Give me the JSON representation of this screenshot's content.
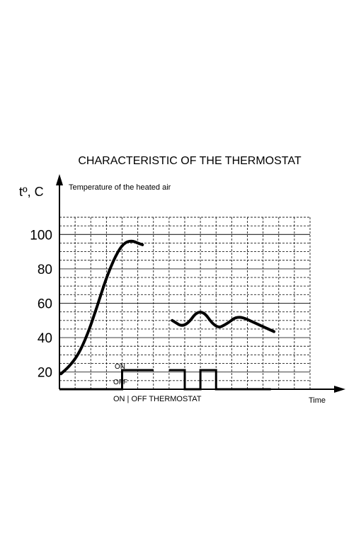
{
  "chart_data": {
    "type": "line",
    "title": "CHARACTERISTIC OF THE THERMOSTAT",
    "ylabel": "tº, C",
    "xlabel": "Time",
    "y_ticks": [
      "20",
      "40",
      "60",
      "80",
      "100"
    ],
    "ylim": [
      10,
      110
    ],
    "x_units_range": [
      0,
      16
    ],
    "grid": true,
    "series": [
      {
        "name": "Temperature of the heated air",
        "segments": [
          [
            [
              0.1,
              19
            ],
            [
              0.6,
              23
            ],
            [
              1.2,
              30
            ],
            [
              1.8,
              42
            ],
            [
              2.4,
              58
            ],
            [
              3.0,
              75
            ],
            [
              3.6,
              88
            ],
            [
              4.1,
              95
            ],
            [
              4.6,
              96.5
            ],
            [
              5.0,
              95
            ],
            [
              5.3,
              94
            ]
          ],
          [
            [
              7.2,
              50
            ],
            [
              8.0,
              45.5
            ],
            [
              9.0,
              58
            ],
            [
              10.0,
              45
            ],
            [
              10.7,
              48
            ],
            [
              11.4,
              53
            ],
            [
              12.5,
              48.5
            ],
            [
              13.7,
              43.5
            ]
          ]
        ]
      }
    ],
    "thermostat": {
      "label": "ON | OFF  THERMOSTAT",
      "on_label": "ON",
      "off_label": "OFF",
      "states": [
        {
          "from": 0,
          "to": 4,
          "state": "off"
        },
        {
          "from": 4,
          "to": 6,
          "state": "on"
        },
        {
          "from": 7,
          "to": 8,
          "state": "on"
        },
        {
          "from": 8,
          "to": 9,
          "state": "off"
        },
        {
          "from": 9,
          "to": 10,
          "state": "on"
        },
        {
          "from": 10,
          "to": 13.5,
          "state": "off"
        }
      ]
    }
  }
}
